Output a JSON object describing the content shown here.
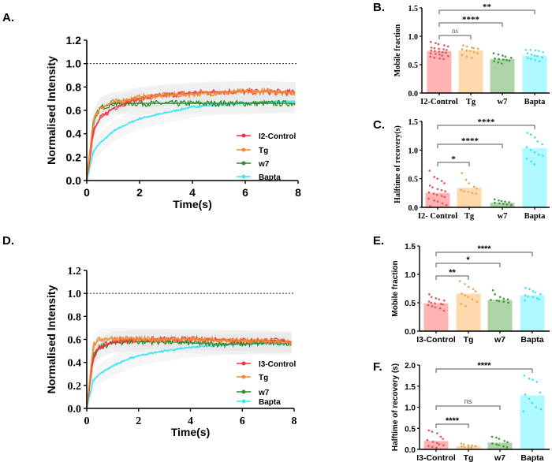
{
  "chart_data": [
    {
      "panel": "A.",
      "type": "line",
      "xlabel": "Time(s)",
      "ylabel": "Normalised Intensity",
      "xlim": [
        0,
        8
      ],
      "ylim": [
        0,
        1.2
      ],
      "xticks": [
        "0",
        "2",
        "4",
        "6",
        "8"
      ],
      "yticks": [
        "0.0",
        "0.2",
        "0.4",
        "0.6",
        "0.8",
        "1.0",
        "1.2"
      ],
      "reference_line": 1.0,
      "legend_position": "bottom-right",
      "x": [
        0,
        0.25,
        0.5,
        1,
        1.5,
        2,
        3,
        4,
        5,
        6,
        7,
        8
      ],
      "series": [
        {
          "name": "I2-Control",
          "color": "#f0303a",
          "values": [
            0,
            0.42,
            0.53,
            0.62,
            0.67,
            0.7,
            0.73,
            0.75,
            0.76,
            0.76,
            0.76,
            0.75
          ]
        },
        {
          "name": "Tg",
          "color": "#f08a30",
          "values": [
            0,
            0.52,
            0.62,
            0.67,
            0.69,
            0.71,
            0.73,
            0.74,
            0.75,
            0.76,
            0.76,
            0.75
          ]
        },
        {
          "name": "w7",
          "color": "#2e8b2e",
          "values": [
            0,
            0.5,
            0.62,
            0.66,
            0.66,
            0.66,
            0.66,
            0.66,
            0.66,
            0.66,
            0.66,
            0.66
          ]
        },
        {
          "name": "Bapta",
          "color": "#3ee6f0",
          "values": [
            0,
            0.25,
            0.32,
            0.42,
            0.48,
            0.53,
            0.58,
            0.63,
            0.65,
            0.66,
            0.67,
            0.68
          ]
        }
      ]
    },
    {
      "panel": "B.",
      "type": "bar",
      "ylabel": "Mobile fraction",
      "ylim": [
        0,
        1.5
      ],
      "yticks": [
        "0.0",
        "0.5",
        "1.0",
        "1.5"
      ],
      "categories": [
        "I2-Control",
        "Tg",
        "w7",
        "Bapta"
      ],
      "values": [
        0.74,
        0.75,
        0.6,
        0.66
      ],
      "points": [
        [
          0.9,
          0.88,
          0.86,
          0.84,
          0.82,
          0.8,
          0.79,
          0.78,
          0.77,
          0.76,
          0.75,
          0.74,
          0.73,
          0.72,
          0.71,
          0.7,
          0.69,
          0.68,
          0.66,
          0.65,
          0.64,
          0.62,
          0.61,
          0.6
        ],
        [
          0.84,
          0.82,
          0.8,
          0.79,
          0.78,
          0.77,
          0.75,
          0.74,
          0.72,
          0.7,
          0.67,
          0.64,
          0.62
        ],
        [
          0.7,
          0.68,
          0.66,
          0.64,
          0.62,
          0.61,
          0.6,
          0.59,
          0.58,
          0.57,
          0.56,
          0.54,
          0.52
        ],
        [
          0.76,
          0.76,
          0.75,
          0.74,
          0.72,
          0.7,
          0.68,
          0.66,
          0.65,
          0.63,
          0.61,
          0.6,
          0.58,
          0.56
        ]
      ],
      "significance": [
        {
          "from": 0,
          "to": 1,
          "label": "ns"
        },
        {
          "from": 0,
          "to": 2,
          "label": "****"
        },
        {
          "from": 0,
          "to": 3,
          "label": "**"
        }
      ]
    },
    {
      "panel": "C.",
      "type": "bar",
      "ylabel": "Halftime of recovery(s)",
      "ylim": [
        0,
        1.5
      ],
      "yticks": [
        "0.0",
        "0.5",
        "1.0",
        "1.5"
      ],
      "categories": [
        "I2- Control",
        "Tg",
        "w7",
        "Bapta"
      ],
      "values": [
        0.25,
        0.34,
        0.08,
        1.03
      ],
      "points": [
        [
          0.64,
          0.53,
          0.5,
          0.46,
          0.42,
          0.38,
          0.35,
          0.32,
          0.3,
          0.28,
          0.26,
          0.24,
          0.22,
          0.2,
          0.18,
          0.15,
          0.12,
          0.1,
          0.07,
          0.04,
          0.02
        ],
        [
          0.6,
          0.48,
          0.42,
          0.36,
          0.33,
          0.3,
          0.28,
          0.27,
          0.25,
          0.24
        ],
        [
          0.14,
          0.12,
          0.11,
          0.1,
          0.09,
          0.08,
          0.07,
          0.06,
          0.05,
          0.04
        ],
        [
          1.3,
          1.27,
          1.22,
          1.15,
          1.1,
          1.05,
          1.0,
          0.96,
          0.92,
          0.9,
          0.85,
          0.8,
          0.75
        ]
      ],
      "significance": [
        {
          "from": 0,
          "to": 1,
          "label": "*"
        },
        {
          "from": 0,
          "to": 2,
          "label": "****"
        },
        {
          "from": 0,
          "to": 3,
          "label": "****"
        }
      ]
    },
    {
      "panel": "D.",
      "type": "line",
      "xlabel": "Time(s)",
      "ylabel": "Normalised Intensity",
      "xlim": [
        0,
        8
      ],
      "ylim": [
        0,
        1.2
      ],
      "xticks": [
        "0",
        "2",
        "4",
        "6",
        "8"
      ],
      "yticks": [
        "0.0",
        "0.2",
        "0.4",
        "0.6",
        "0.8",
        "1.0",
        "1.2"
      ],
      "reference_line": 1.0,
      "legend_position": "bottom-right",
      "x": [
        0,
        0.25,
        0.5,
        1,
        1.5,
        2,
        3,
        4,
        5,
        6,
        7,
        8
      ],
      "series": [
        {
          "name": "I3-Control",
          "color": "#f0303a",
          "values": [
            0,
            0.45,
            0.53,
            0.58,
            0.59,
            0.6,
            0.6,
            0.6,
            0.6,
            0.59,
            0.59,
            0.58
          ]
        },
        {
          "name": "Tg",
          "color": "#f08a30",
          "values": [
            0,
            0.55,
            0.6,
            0.61,
            0.61,
            0.6,
            0.6,
            0.6,
            0.59,
            0.59,
            0.58,
            0.57
          ]
        },
        {
          "name": "w7",
          "color": "#2e8b2e",
          "values": [
            0,
            0.45,
            0.53,
            0.57,
            0.58,
            0.58,
            0.58,
            0.57,
            0.56,
            0.56,
            0.57,
            0.57
          ]
        },
        {
          "name": "Bapta",
          "color": "#3ee6f0",
          "values": [
            0,
            0.25,
            0.3,
            0.37,
            0.42,
            0.46,
            0.5,
            0.53,
            0.55,
            0.56,
            0.56,
            0.56
          ]
        }
      ]
    },
    {
      "panel": "E.",
      "type": "bar",
      "ylabel": "Mobile fraction",
      "ylim": [
        0,
        1.5
      ],
      "yticks": [
        "0.0",
        "0.5",
        "1.0",
        "1.5"
      ],
      "categories": [
        "I3-Control",
        "Tg",
        "w7",
        "Bapta"
      ],
      "values": [
        0.49,
        0.66,
        0.55,
        0.63
      ],
      "points": [
        [
          0.65,
          0.6,
          0.58,
          0.56,
          0.54,
          0.52,
          0.5,
          0.49,
          0.48,
          0.47,
          0.46,
          0.44,
          0.42,
          0.4,
          0.36
        ],
        [
          0.88,
          0.83,
          0.78,
          0.74,
          0.7,
          0.66,
          0.63,
          0.6,
          0.56,
          0.52,
          0.48,
          0.44
        ],
        [
          0.72,
          0.65,
          0.6,
          0.57,
          0.56,
          0.55,
          0.54,
          0.53,
          0.52,
          0.5
        ],
        [
          0.76,
          0.74,
          0.7,
          0.68,
          0.65,
          0.63,
          0.61,
          0.6,
          0.58,
          0.56,
          0.54
        ]
      ],
      "significance": [
        {
          "from": 0,
          "to": 1,
          "label": "**"
        },
        {
          "from": 0,
          "to": 2,
          "label": "*"
        },
        {
          "from": 0,
          "to": 3,
          "label": "****"
        }
      ]
    },
    {
      "panel": "F.",
      "type": "bar",
      "ylabel": "Halftime of recovery (s)",
      "ylim": [
        0,
        2.0
      ],
      "yticks": [
        "0.0",
        "0.5",
        "1.0",
        "1.5",
        "2.0"
      ],
      "categories": [
        "I3-Control",
        "Tg",
        "w7",
        "Bapta"
      ],
      "values": [
        0.2,
        0.08,
        0.16,
        1.28
      ],
      "points": [
        [
          0.45,
          0.42,
          0.38,
          0.3,
          0.25,
          0.22,
          0.18,
          0.15,
          0.12,
          0.1,
          0.08,
          0.06,
          0.04
        ],
        [
          0.14,
          0.12,
          0.1,
          0.09,
          0.08,
          0.07,
          0.06,
          0.05,
          0.04
        ],
        [
          0.3,
          0.28,
          0.25,
          0.2,
          0.17,
          0.14,
          0.12,
          0.1,
          0.07,
          0.05
        ],
        [
          1.75,
          1.68,
          1.65,
          1.6,
          1.35,
          1.3,
          1.2,
          1.1,
          1.0,
          0.95,
          0.9
        ]
      ],
      "significance": [
        {
          "from": 0,
          "to": 1,
          "label": "****"
        },
        {
          "from": 0,
          "to": 2,
          "label": "ns"
        },
        {
          "from": 0,
          "to": 3,
          "label": "****"
        }
      ]
    }
  ],
  "colors": {
    "bar_fills": [
      "#ffb4b4",
      "#ffd9ae",
      "#aed3a6",
      "#aef9ff"
    ],
    "point_colors": [
      "#e8505a",
      "#f0a050",
      "#3a9a3a",
      "#40e0f0"
    ]
  }
}
